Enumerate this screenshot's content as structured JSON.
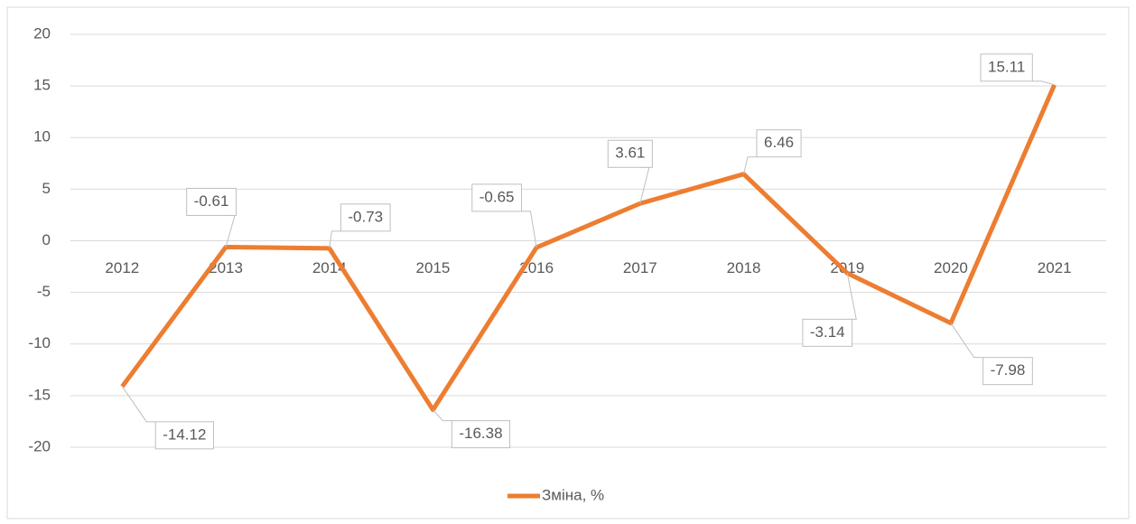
{
  "chart_data": {
    "type": "line",
    "categories": [
      "2012",
      "2013",
      "2014",
      "2015",
      "2016",
      "2017",
      "2018",
      "2019",
      "2020",
      "2021"
    ],
    "series": [
      {
        "name": "Зміна, %",
        "color": "#ed7d31",
        "values": [
          -14.12,
          -0.61,
          -0.73,
          -16.38,
          -0.65,
          3.61,
          6.46,
          -3.14,
          -7.98,
          15.11
        ]
      }
    ],
    "ylim": [
      -20,
      20
    ],
    "yticks": [
      -20,
      -15,
      -10,
      -5,
      0,
      5,
      10,
      15,
      20
    ],
    "grid": true,
    "legend": "bottom"
  }
}
